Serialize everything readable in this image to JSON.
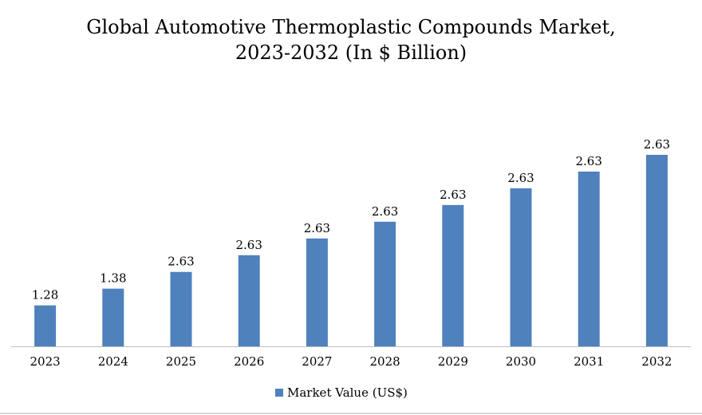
{
  "chart_data": {
    "type": "bar",
    "title_lines": [
      "Global Automotive Thermoplastic Compounds Market,",
      "2023-2032 (In $ Billion)"
    ],
    "categories": [
      "2023",
      "2024",
      "2025",
      "2026",
      "2027",
      "2028",
      "2029",
      "2030",
      "2031",
      "2032"
    ],
    "series": [
      {
        "name": "Market Value (US$)",
        "values": [
          1.28,
          1.38,
          2.63,
          2.63,
          2.63,
          2.63,
          2.63,
          2.63,
          2.63,
          2.63
        ],
        "labels": [
          "1.28",
          "1.38",
          "2.63",
          "2.63",
          "2.63",
          "2.63",
          "2.63",
          "2.63",
          "2.63",
          "2.63"
        ],
        "color": "#4f81bd"
      }
    ],
    "bar_levels": [
      0.245,
      0.345,
      0.445,
      0.545,
      0.645,
      0.745,
      0.845,
      0.945,
      1.045,
      1.145
    ],
    "legend_position": "bottom",
    "grid": false,
    "axis_color": "#bfbfbf"
  }
}
